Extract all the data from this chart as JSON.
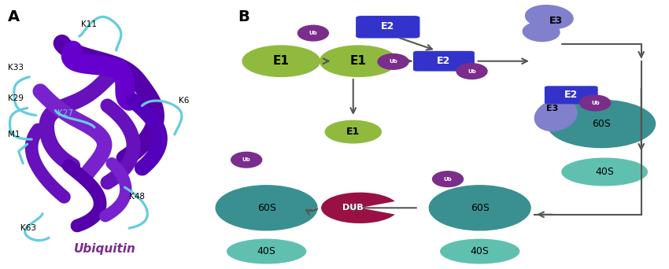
{
  "fig_width": 8.5,
  "fig_height": 3.42,
  "bg_color": "#ffffff",
  "panel_A_label": "A",
  "panel_B_label": "B",
  "ubiquitin_label": "Ubiquitin",
  "ubiquitin_color": "#7B2D8B",
  "colors": {
    "E1_green": "#8fba3e",
    "E2_blue": "#3333cc",
    "E3_lavender": "#8080cc",
    "ribosome_60S": "#3a9090",
    "ribosome_40S": "#60c0b0",
    "DUB_crimson": "#991144",
    "Ub_purple": "#7B2D8B",
    "arrow_gray": "#555555",
    "purple_ribbon": "#6611bb",
    "cyan_loop": "#66ccdd"
  }
}
